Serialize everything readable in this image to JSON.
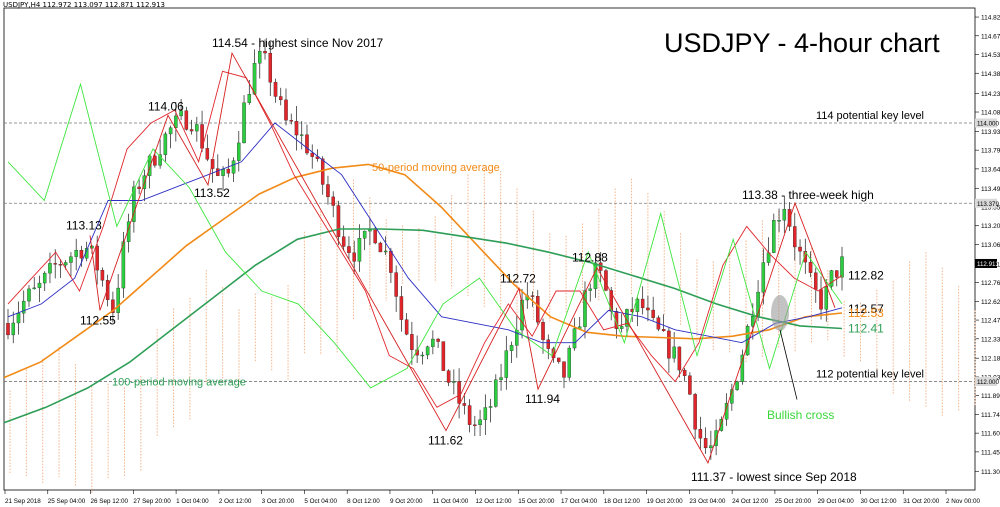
{
  "header": {
    "symbol": "USDJPY,H4",
    "ohlc": "112.972 113.097 112.871 112.913"
  },
  "chart_title": "USDJPY - 4-hour chart",
  "chart_data": {
    "type": "candlestick",
    "title": "USDJPY - 4-hour chart",
    "ylim": [
      111.16,
      114.89
    ],
    "y_ticks": [
      "114.820",
      "114.675",
      "114.530",
      "114.385",
      "114.230",
      "114.085",
      "113.935",
      "113.790",
      "113.645",
      "113.495",
      "113.350",
      "113.205",
      "113.060",
      "112.910",
      "112.765",
      "112.620",
      "112.475",
      "112.330",
      "112.180",
      "112.035",
      "111.890",
      "111.745",
      "111.600",
      "111.455",
      "111.305"
    ],
    "x_tick_labels": [
      "21 Sep 2018",
      "25 Sep 04:00",
      "26 Sep 12:00",
      "27 Sep 20:00",
      "1 Oct 04:00",
      "2 Oct 12:00",
      "3 Oct 20:00",
      "5 Oct 04:00",
      "8 Oct 12:00",
      "9 Oct 20:00",
      "11 Oct 04:00",
      "12 Oct 12:00",
      "15 Oct 20:00",
      "17 Oct 04:00",
      "18 Oct 12:00",
      "19 Oct 20:00",
      "23 Oct 04:00",
      "24 Oct 12:00",
      "25 Oct 20:00",
      "29 Oct 04:00",
      "30 Oct 12:00",
      "31 Oct 20:00",
      "2 Nov 00:00"
    ],
    "price_tags": [
      {
        "text": "114.000",
        "value": 114.0
      },
      {
        "text": "113.379",
        "value": 113.379
      },
      {
        "text": "112.913",
        "value": 112.913
      },
      {
        "text": "112.000",
        "value": 112.0
      }
    ],
    "horizontal_levels": [
      {
        "value": 114.0,
        "label": "114 potential key level"
      },
      {
        "value": 113.379,
        "label": ""
      },
      {
        "value": 112.0,
        "label": "112 potential key level"
      }
    ],
    "swing_close_path": [
      113.13,
      112.55,
      114.06,
      113.52,
      114.54,
      111.62,
      112.72,
      111.94,
      112.88,
      111.37,
      113.38,
      112.57
    ],
    "series": [
      {
        "name": "50-period moving average",
        "color": "#f28a17",
        "values": [
          112.03,
          112.15,
          112.35,
          112.55,
          112.8,
          113.05,
          113.25,
          113.45,
          113.58,
          113.65,
          113.68,
          113.6,
          113.35,
          113.05,
          112.75,
          112.5,
          112.38,
          112.35,
          112.34,
          112.33,
          112.35,
          112.4,
          112.5,
          112.53
        ]
      },
      {
        "name": "100-period moving average",
        "color": "#2e9e57",
        "values": [
          111.68,
          111.8,
          111.95,
          112.15,
          112.4,
          112.65,
          112.9,
          113.1,
          113.18,
          113.18,
          113.17,
          113.12,
          113.07,
          113.0,
          112.92,
          112.82,
          112.72,
          112.6,
          112.5,
          112.43,
          112.41
        ]
      },
      {
        "name": "",
        "color": "#e0262b",
        "values": [
          112.6,
          112.8,
          113.0,
          112.7,
          113.2,
          113.8,
          114.0,
          114.1,
          113.7,
          114.4,
          114.35,
          114.0,
          113.6,
          113.3,
          113.0,
          112.7,
          112.2,
          112.1,
          111.8,
          111.9,
          112.3,
          112.6,
          112.35,
          112.7,
          112.7,
          112.4,
          112.45,
          112.2,
          112.0,
          112.3,
          112.9,
          113.2,
          112.98,
          112.8,
          112.7,
          112.82
        ]
      },
      {
        "name": "",
        "color": "#2d2fc4",
        "values": [
          112.5,
          112.6,
          112.8,
          113.4,
          113.4,
          113.5,
          113.6,
          113.7,
          114.0,
          113.8,
          113.6,
          113.2,
          112.8,
          112.5,
          112.45,
          112.4,
          112.3,
          112.3,
          112.55,
          112.5,
          112.4,
          112.35,
          112.3,
          112.45,
          112.5,
          112.57
        ]
      },
      {
        "name": "",
        "color": "#3ee63e",
        "values": [
          113.7,
          113.4,
          114.3,
          113.2,
          113.8,
          113.5,
          113.0,
          112.7,
          112.6,
          112.3,
          111.95,
          112.1,
          112.6,
          112.8,
          112.4,
          112.2,
          113.0,
          112.3,
          113.3,
          112.2,
          113.1,
          112.1,
          113.0,
          112.6
        ]
      },
      {
        "name": "Ichimoku cloud",
        "color": "#f4b48a",
        "values": []
      }
    ],
    "candles_trend": [
      112.45,
      112.55,
      112.65,
      112.7,
      112.8,
      112.9,
      112.95,
      113.0,
      113.05,
      112.95,
      112.75,
      112.55,
      113.0,
      113.4,
      113.6,
      113.7,
      113.85,
      113.95,
      114.02,
      114.05,
      113.9,
      113.7,
      113.55,
      113.6,
      113.9,
      114.25,
      114.5,
      114.45,
      114.2,
      114.0,
      113.95,
      113.85,
      113.7,
      113.5,
      113.3,
      113.1,
      113.0,
      113.05,
      113.2,
      113.05,
      112.9,
      112.5,
      112.3,
      112.25,
      112.35,
      112.2,
      112.0,
      111.85,
      111.7,
      111.65,
      111.75,
      111.95,
      112.2,
      112.45,
      112.7,
      112.55,
      112.25,
      112.1,
      112.05,
      112.3,
      112.6,
      112.85,
      112.8,
      112.5,
      112.4,
      112.55,
      112.6,
      112.45,
      112.35,
      112.25,
      112.15,
      111.95,
      111.6,
      111.45,
      111.55,
      111.8,
      112.05,
      112.35,
      112.7,
      113.0,
      113.25,
      113.38,
      113.1,
      112.9,
      112.7,
      112.6,
      112.82,
      112.91
    ],
    "annotations": [
      {
        "text": "114.54 - highest since Nov 2017",
        "value": 114.54
      },
      {
        "text": "114.06",
        "value": 114.06
      },
      {
        "text": "113.52",
        "value": 113.52
      },
      {
        "text": "113.13",
        "value": 113.13
      },
      {
        "text": "112.55",
        "value": 112.55
      },
      {
        "text": "50-period moving average",
        "value": 113.66
      },
      {
        "text": "100-period moving average",
        "value": 112.0
      },
      {
        "text": "112.72",
        "value": 112.72
      },
      {
        "text": "112.88",
        "value": 112.88
      },
      {
        "text": "111.94",
        "value": 111.94
      },
      {
        "text": "111.62",
        "value": 111.62
      },
      {
        "text": "111.37 - lowest since Sep 2018",
        "value": 111.37
      },
      {
        "text": "113.38 - three-week high",
        "value": 113.38
      },
      {
        "text": "Bullish cross",
        "value": 111.74
      },
      {
        "text": "112.82",
        "value": 112.82
      },
      {
        "text": "112.57",
        "value": 112.57
      },
      {
        "text": "112.53",
        "value": 112.53
      },
      {
        "text": "112.41",
        "value": 112.41
      }
    ]
  },
  "colors": {
    "bull": "#2ecc40",
    "bear": "#e0262b",
    "wick": "#1a1a1a",
    "cloud": "#f4b48a",
    "annotation_text": "#000000",
    "ma50_text": "#f28a17",
    "ma100_text": "#2e9e57",
    "bullish_cross_text": "#3ad83a"
  }
}
